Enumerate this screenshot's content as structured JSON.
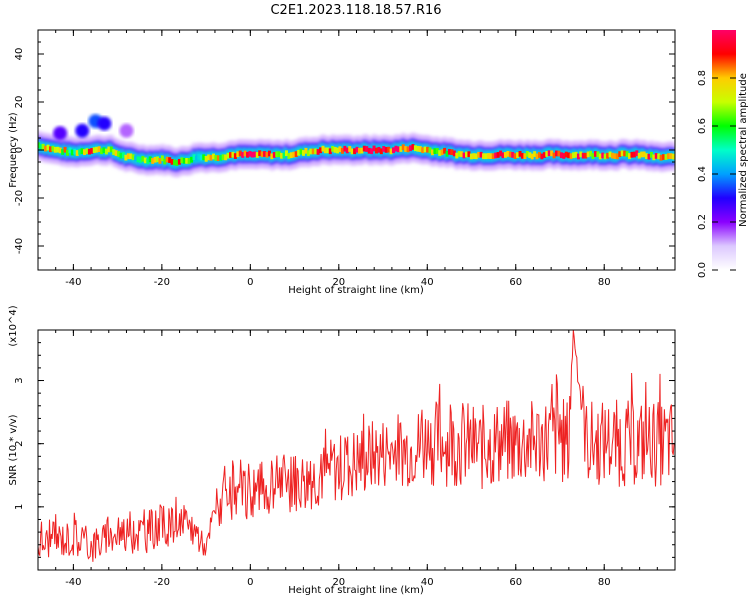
{
  "title": "C2E1.2023.118.18.57.R16",
  "chart_data": [
    {
      "type": "heatmap",
      "xlabel": "Height of straight line (km)",
      "ylabel": "Frequency (Hz)",
      "xlim": [
        -48,
        96
      ],
      "ylim": [
        -50,
        50
      ],
      "xticks": [
        -40,
        -20,
        0,
        20,
        40,
        60,
        80
      ],
      "yticks": [
        -40,
        -20,
        0,
        20,
        40
      ],
      "colorbar": {
        "label": "Normalized spectral amplitude",
        "range": [
          0,
          1
        ],
        "ticks": [
          "0.0",
          "0.2",
          "0.4",
          "0.6",
          "0.8"
        ],
        "tick_values": [
          0.0,
          0.2,
          0.4,
          0.6,
          0.8
        ],
        "colors": [
          "#ffffff",
          "#dcc8ff",
          "#8a00ff",
          "#2000ff",
          "#00a0ff",
          "#00ffc8",
          "#00ff00",
          "#c8ff00",
          "#ffcc00",
          "#ff0000",
          "#ff0066"
        ]
      },
      "ridge": {
        "x": [
          -48,
          -44,
          -40,
          -36,
          -32,
          -28,
          -24,
          -20,
          -16,
          -12,
          -8,
          -4,
          0,
          4,
          8,
          12,
          16,
          20,
          24,
          28,
          32,
          36,
          40,
          44,
          48,
          52,
          56,
          60,
          64,
          68,
          72,
          76,
          80,
          84,
          88,
          92,
          96
        ],
        "y": [
          2,
          0,
          -1,
          0,
          0,
          -3,
          -4,
          -4,
          -5,
          -3,
          -3,
          -2,
          -2,
          -2,
          -2,
          -1,
          0,
          0,
          0,
          0,
          0,
          1,
          0,
          -1,
          -2,
          -2,
          -2,
          -2,
          -2,
          -2,
          -2,
          -2,
          -2,
          -2,
          -2,
          -3,
          -3
        ],
        "amplitude": [
          0.6,
          0.85,
          0.55,
          0.8,
          0.7,
          0.65,
          0.55,
          0.75,
          0.8,
          0.6,
          0.7,
          0.75,
          0.9,
          0.85,
          0.7,
          0.75,
          0.9,
          0.8,
          0.85,
          0.95,
          0.9,
          0.9,
          0.8,
          0.75,
          0.85,
          0.8,
          0.9,
          0.85,
          0.8,
          0.9,
          0.85,
          0.8,
          0.85,
          0.8,
          0.85,
          0.8,
          0.7
        ]
      },
      "patches": [
        {
          "x": -43,
          "y": 7,
          "amplitude": 0.25
        },
        {
          "x": -38,
          "y": 8,
          "amplitude": 0.3
        },
        {
          "x": -35,
          "y": 12,
          "amplitude": 0.35
        },
        {
          "x": -33,
          "y": 11,
          "amplitude": 0.3
        },
        {
          "x": -28,
          "y": 8,
          "amplitude": 0.15
        }
      ]
    },
    {
      "type": "line",
      "xlabel": "Height of straight line (km)",
      "ylabel": "SNR (10 * v/v)",
      "multiplier": "(x10^4)",
      "xlim": [
        -48,
        96
      ],
      "ylim": [
        0,
        3.8
      ],
      "xticks": [
        -40,
        -20,
        0,
        20,
        40,
        60,
        80
      ],
      "yticks": [
        1,
        2,
        3
      ],
      "color": "#ee2222",
      "x": [
        -48,
        -44,
        -40,
        -36,
        -32,
        -28,
        -24,
        -20,
        -16,
        -12,
        -10,
        -8,
        -4,
        0,
        4,
        8,
        12,
        16,
        20,
        24,
        28,
        32,
        36,
        40,
        44,
        48,
        52,
        56,
        60,
        64,
        68,
        72,
        73,
        76,
        80,
        84,
        88,
        92,
        96
      ],
      "y": [
        0.4,
        0.5,
        0.5,
        0.4,
        0.5,
        0.6,
        0.6,
        0.7,
        0.7,
        0.6,
        0.3,
        1.0,
        1.1,
        1.2,
        1.3,
        1.4,
        1.4,
        1.5,
        1.6,
        1.7,
        1.8,
        1.9,
        1.9,
        2.0,
        2.0,
        2.0,
        1.9,
        2.0,
        2.0,
        2.0,
        2.1,
        2.0,
        3.8,
        2.0,
        2.0,
        2.0,
        2.0,
        2.0,
        2.0
      ],
      "noise_amplitude": [
        0.25,
        0.3,
        0.3,
        0.3,
        0.3,
        0.35,
        0.35,
        0.35,
        0.3,
        0.3,
        0.1,
        0.35,
        0.4,
        0.45,
        0.5,
        0.5,
        0.5,
        0.5,
        0.55,
        0.6,
        0.6,
        0.6,
        0.6,
        0.7,
        0.7,
        0.7,
        0.7,
        0.7,
        0.7,
        0.7,
        0.7,
        0.7,
        0.0,
        0.7,
        0.7,
        0.7,
        0.7,
        0.7,
        0.7
      ]
    }
  ]
}
